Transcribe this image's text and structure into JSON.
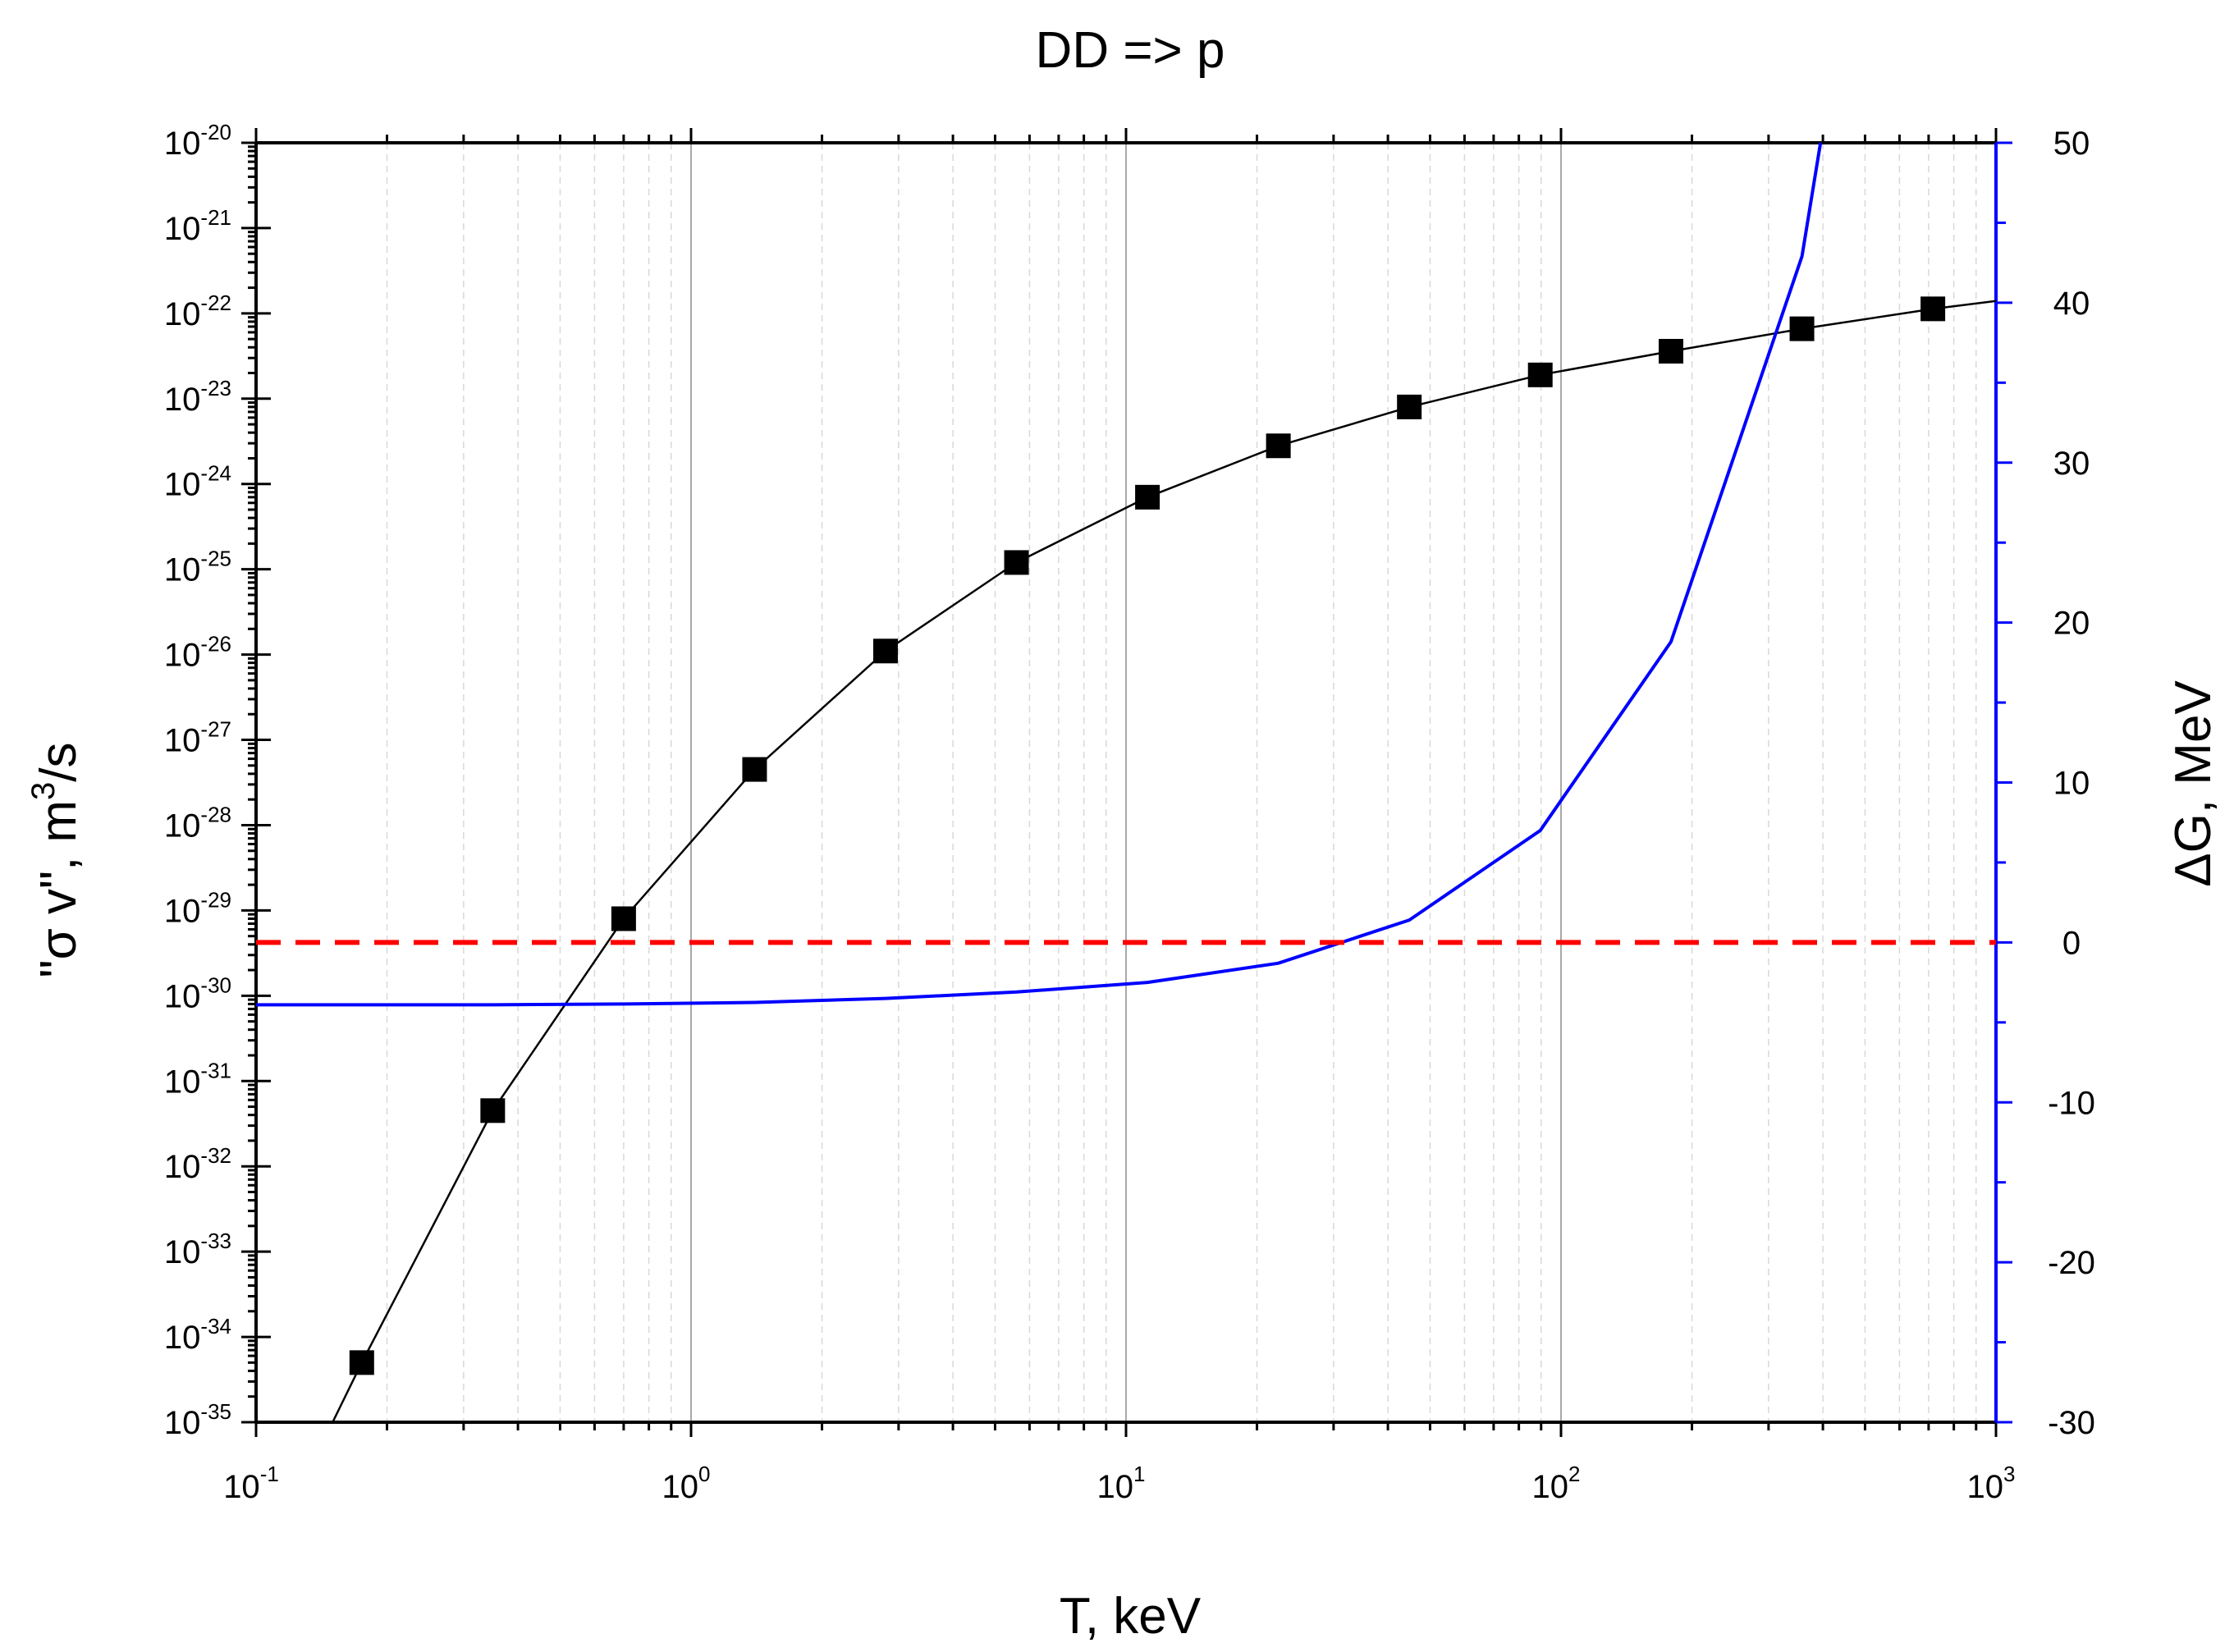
{
  "chart_data": {
    "type": "line",
    "title": "DD => p",
    "xlabel": "T, keV",
    "ylabel_left": {
      "quote_open": "\"",
      "symbol": "σ",
      "text": " v\", m",
      "sup": "3",
      "unit_tail": "/s"
    },
    "ylabel_right": {
      "symbol": "Δ",
      "text": "G, MeV"
    },
    "x_scale": "log",
    "xlim": [
      0.1,
      1000
    ],
    "x_ticks": [
      {
        "value": 0.1,
        "base": "10",
        "exp": "-1"
      },
      {
        "value": 1,
        "base": "10",
        "exp": "0"
      },
      {
        "value": 10,
        "base": "10",
        "exp": "1"
      },
      {
        "value": 100,
        "base": "10",
        "exp": "2"
      },
      {
        "value": 1000,
        "base": "10",
        "exp": "3"
      }
    ],
    "y_left_scale": "log",
    "y_left_lim": [
      1e-35,
      1e-20
    ],
    "y_left_ticks": [
      {
        "value": -20,
        "base": "10",
        "exp": "-20"
      },
      {
        "value": -21,
        "base": "10",
        "exp": "-21"
      },
      {
        "value": -22,
        "base": "10",
        "exp": "-22"
      },
      {
        "value": -23,
        "base": "10",
        "exp": "-23"
      },
      {
        "value": -24,
        "base": "10",
        "exp": "-24"
      },
      {
        "value": -25,
        "base": "10",
        "exp": "-25"
      },
      {
        "value": -26,
        "base": "10",
        "exp": "-26"
      },
      {
        "value": -27,
        "base": "10",
        "exp": "-27"
      },
      {
        "value": -28,
        "base": "10",
        "exp": "-28"
      },
      {
        "value": -29,
        "base": "10",
        "exp": "-29"
      },
      {
        "value": -30,
        "base": "10",
        "exp": "-30"
      },
      {
        "value": -31,
        "base": "10",
        "exp": "-31"
      },
      {
        "value": -32,
        "base": "10",
        "exp": "-32"
      },
      {
        "value": -33,
        "base": "10",
        "exp": "-33"
      },
      {
        "value": -34,
        "base": "10",
        "exp": "-34"
      },
      {
        "value": -35,
        "base": "10",
        "exp": "-35"
      }
    ],
    "y_right_scale": "linear",
    "y_right_lim": [
      -30,
      50
    ],
    "y_right_ticks": [
      {
        "value": 50,
        "label": "50"
      },
      {
        "value": 40,
        "label": "40"
      },
      {
        "value": 30,
        "label": "30"
      },
      {
        "value": 20,
        "label": "20"
      },
      {
        "value": 10,
        "label": "10"
      },
      {
        "value": 0,
        "label": "0"
      },
      {
        "value": -10,
        "label": "-10"
      },
      {
        "value": -20,
        "label": "-20"
      },
      {
        "value": -30,
        "label": "-30"
      }
    ],
    "grid": {
      "major_x": true,
      "minor_x": true,
      "y": false
    },
    "series": [
      {
        "name": "sigma_v",
        "axis": "left",
        "color": "#000000",
        "style": "line+square-markers",
        "markers_x": [
          0.175,
          0.35,
          0.7,
          1.4,
          2.8,
          5.6,
          11.2,
          22.4,
          44.8,
          89.6,
          179,
          358,
          716
        ],
        "markers_y": [
          5e-35,
          4.5e-32,
          8e-30,
          4.5e-28,
          1.1e-26,
          1.2e-25,
          7e-25,
          2.8e-24,
          8e-24,
          1.9e-23,
          3.6e-23,
          6.6e-23,
          1.13e-22
        ],
        "line_x": [
          0.15,
          0.175,
          0.35,
          0.7,
          1.4,
          2.8,
          5.6,
          11.2,
          22.4,
          44.8,
          89.6,
          179,
          358,
          716,
          1000
        ],
        "line_y": [
          1e-35,
          5e-35,
          4.5e-32,
          8e-30,
          4.5e-28,
          1.1e-26,
          1.2e-25,
          7e-25,
          2.8e-24,
          8e-24,
          1.9e-23,
          3.6e-23,
          6.6e-23,
          1.13e-22,
          1.4e-22
        ]
      },
      {
        "name": "delta_G",
        "axis": "right",
        "color": "#0000ff",
        "style": "line",
        "x": [
          0.1,
          0.35,
          0.7,
          1.4,
          2.8,
          5.6,
          11.2,
          22.4,
          44.8,
          89.6,
          179,
          358,
          395
        ],
        "y": [
          -3.9,
          -3.9,
          -3.85,
          -3.75,
          -3.5,
          -3.1,
          -2.5,
          -1.3,
          1.4,
          7.0,
          18.8,
          42.9,
          50
        ]
      },
      {
        "name": "zero_reference",
        "axis": "right",
        "color": "#ff0000",
        "style": "dashed",
        "x": [
          0.1,
          1000
        ],
        "y": [
          0,
          0
        ]
      }
    ]
  }
}
